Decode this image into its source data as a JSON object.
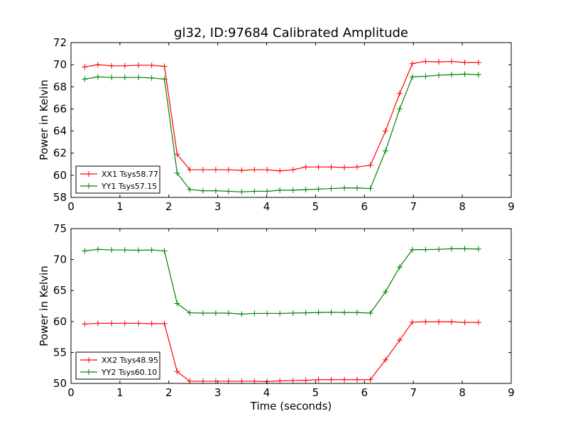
{
  "figure": {
    "title": "gl32, ID:97684 Calibrated Amplitude"
  },
  "chart_data": [
    {
      "type": "line",
      "title": "gl32, ID:97684 Calibrated Amplitude",
      "xlabel": "",
      "ylabel": "Power in Kelvin",
      "xlim": [
        0,
        9
      ],
      "ylim": [
        58,
        72
      ],
      "xticks": [
        "0",
        "1",
        "2",
        "3",
        "4",
        "5",
        "6",
        "7",
        "8",
        "9"
      ],
      "yticks": [
        "58",
        "60",
        "62",
        "64",
        "66",
        "68",
        "70",
        "72"
      ],
      "grid": false,
      "legend_position": "lower-left",
      "x": [
        0.28,
        0.55,
        0.83,
        1.1,
        1.38,
        1.65,
        1.91,
        2.17,
        2.43,
        2.7,
        2.96,
        3.22,
        3.49,
        3.75,
        4.01,
        4.27,
        4.54,
        4.8,
        5.06,
        5.32,
        5.59,
        5.85,
        6.12,
        6.43,
        6.72,
        6.98,
        7.25,
        7.52,
        7.78,
        8.05,
        8.33
      ],
      "series": [
        {
          "name": "XX1 Tsys58.77",
          "color": "#ff0000",
          "values": [
            69.8,
            70.0,
            69.9,
            69.9,
            69.95,
            69.95,
            69.85,
            61.9,
            60.5,
            60.5,
            60.5,
            60.5,
            60.45,
            60.5,
            60.5,
            60.4,
            60.5,
            60.75,
            60.75,
            60.75,
            60.7,
            60.75,
            60.9,
            64.0,
            67.4,
            70.1,
            70.3,
            70.25,
            70.3,
            70.2,
            70.2
          ]
        },
        {
          "name": "YY1 Tsys57.15",
          "color": "#008000",
          "values": [
            68.7,
            68.9,
            68.85,
            68.85,
            68.85,
            68.8,
            68.7,
            60.2,
            58.7,
            58.6,
            58.6,
            58.55,
            58.5,
            58.55,
            58.55,
            58.65,
            58.65,
            58.7,
            58.75,
            58.8,
            58.85,
            58.85,
            58.8,
            62.2,
            66.0,
            68.9,
            68.95,
            69.05,
            69.1,
            69.15,
            69.1
          ]
        }
      ]
    },
    {
      "type": "line",
      "title": "",
      "xlabel": "Time (seconds)",
      "ylabel": "Power in Kelvin",
      "xlim": [
        0,
        9
      ],
      "ylim": [
        50,
        75
      ],
      "xticks": [
        "0",
        "1",
        "2",
        "3",
        "4",
        "5",
        "6",
        "7",
        "8",
        "9"
      ],
      "yticks": [
        "50",
        "55",
        "60",
        "65",
        "70",
        "75"
      ],
      "grid": false,
      "legend_position": "lower-left",
      "x": [
        0.28,
        0.55,
        0.83,
        1.1,
        1.38,
        1.65,
        1.91,
        2.17,
        2.43,
        2.7,
        2.96,
        3.22,
        3.49,
        3.75,
        4.01,
        4.27,
        4.54,
        4.8,
        5.06,
        5.32,
        5.59,
        5.85,
        6.12,
        6.43,
        6.72,
        6.98,
        7.25,
        7.52,
        7.78,
        8.05,
        8.33
      ],
      "series": [
        {
          "name": "XX2 Tsys48.95",
          "color": "#ff0000",
          "values": [
            59.6,
            59.7,
            59.7,
            59.7,
            59.7,
            59.65,
            59.65,
            51.9,
            50.35,
            50.35,
            50.35,
            50.35,
            50.35,
            50.35,
            50.3,
            50.4,
            50.45,
            50.5,
            50.6,
            50.6,
            50.6,
            50.6,
            50.6,
            53.8,
            57.0,
            59.9,
            59.95,
            59.95,
            59.95,
            59.85,
            59.85
          ]
        },
        {
          "name": "YY2 Tsys60.10",
          "color": "#008000",
          "values": [
            71.4,
            71.65,
            71.55,
            71.55,
            71.5,
            71.55,
            71.4,
            62.9,
            61.4,
            61.35,
            61.35,
            61.35,
            61.2,
            61.3,
            61.3,
            61.3,
            61.35,
            61.4,
            61.45,
            61.5,
            61.45,
            61.45,
            61.35,
            64.8,
            68.8,
            71.6,
            71.6,
            71.65,
            71.75,
            71.75,
            71.7
          ]
        }
      ]
    }
  ]
}
